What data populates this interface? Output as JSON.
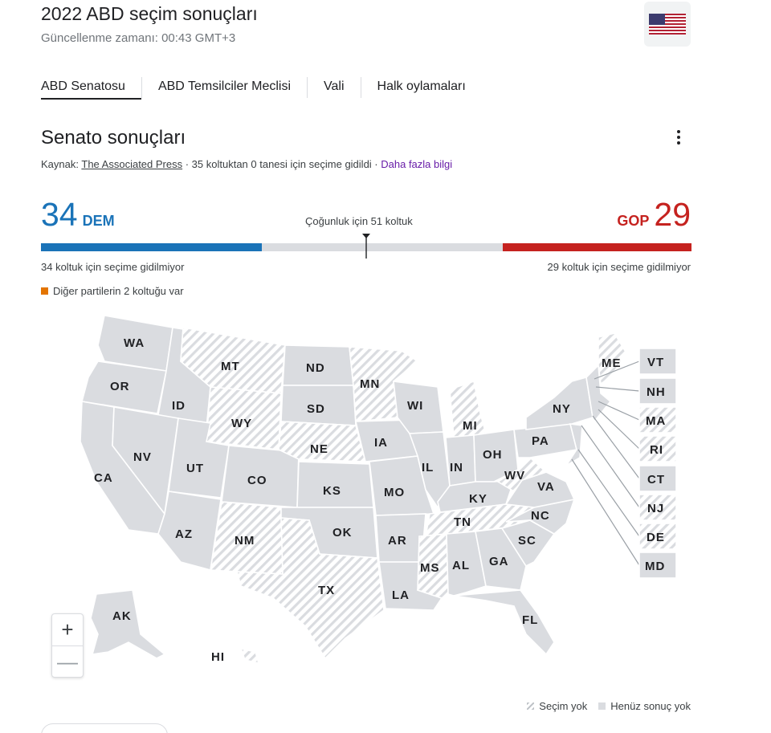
{
  "header": {
    "title": "2022 ABD seçim sonuçları",
    "updated": "Güncellenme zamanı: 00:43 GMT+3",
    "flag_icon": "us-flag-icon"
  },
  "tabs": [
    {
      "label": "ABD Senatosu",
      "active": true
    },
    {
      "label": "ABD Temsilciler Meclisi",
      "active": false
    },
    {
      "label": "Vali",
      "active": false
    },
    {
      "label": "Halk oylamaları",
      "active": false
    }
  ],
  "section": {
    "title": "Senato sonuçları",
    "source_prefix": "Kaynak:",
    "source_name": "The Associated Press",
    "source_detail": "· 35 koltuktan 0 tanesi için seçime gidildi ·",
    "more_link": "Daha fazla bilgi"
  },
  "tally": {
    "dem_count": "34",
    "dem_label": "DEM",
    "gop_count": "29",
    "gop_label": "GOP",
    "majority": "Çoğunluk için 51 koltuk",
    "dem_note": "34 koltuk için seçime gidilmiyor",
    "gop_note": "29 koltuk için seçime gidilmiyor",
    "other_note": "Diğer partilerin 2 koltuğu var",
    "total_seats": 100,
    "dem_seats": 34,
    "gop_seats": 29,
    "majority_seats": 51
  },
  "colors": {
    "dem": "#1a73b8",
    "gop": "#c5221f",
    "other": "#e37400",
    "no_result": "#dadce0"
  },
  "map": {
    "states": {
      "WA": "WA",
      "OR": "OR",
      "CA": "CA",
      "ID": "ID",
      "NV": "NV",
      "MT": "MT",
      "WY": "WY",
      "UT": "UT",
      "AZ": "AZ",
      "CO": "CO",
      "NM": "NM",
      "ND": "ND",
      "SD": "SD",
      "NE": "NE",
      "KS": "KS",
      "OK": "OK",
      "TX": "TX",
      "MN": "MN",
      "IA": "IA",
      "MO": "MO",
      "AR": "AR",
      "LA": "LA",
      "WI": "WI",
      "IL": "IL",
      "MI": "MI",
      "IN": "IN",
      "OH": "OH",
      "KY": "KY",
      "TN": "TN",
      "MS": "MS",
      "AL": "AL",
      "GA": "GA",
      "FL": "FL",
      "SC": "SC",
      "NC": "NC",
      "VA": "VA",
      "WV": "WV",
      "PA": "PA",
      "NY": "NY",
      "ME": "ME",
      "AK": "AK",
      "HI": "HI"
    },
    "callouts": [
      "VT",
      "NH",
      "MA",
      "RI",
      "CT",
      "NJ",
      "DE",
      "MD"
    ]
  },
  "zoom": {
    "in": "+",
    "out": "—"
  },
  "legend": {
    "no_election": "Seçim yok",
    "no_result": "Henüz sonuç yok"
  }
}
